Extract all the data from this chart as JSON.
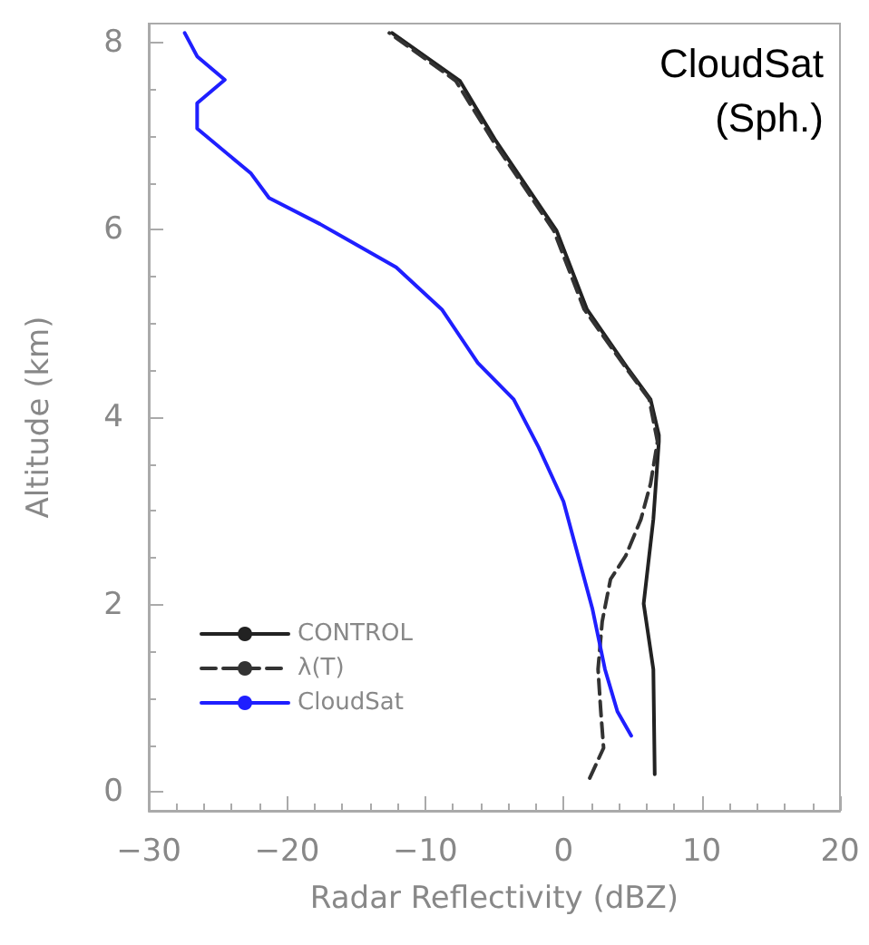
{
  "chart_data": {
    "type": "line",
    "xlabel": "Radar Reflectivity (dBZ)",
    "ylabel": "Altitude (km)",
    "xlim": [
      -30,
      20
    ],
    "xticks": [
      -30,
      -20,
      -10,
      0,
      10,
      20
    ],
    "ylim": [
      -0.2,
      8.2
    ],
    "yticks": [
      0,
      2,
      4,
      6,
      8
    ],
    "grid": false,
    "legend": "bottom left",
    "marker": "none",
    "annotations": [
      "CloudSat\n(Sph.)"
    ],
    "series": [
      {
        "name": "CONTROL",
        "color": "#222222",
        "line_style": "solid",
        "x": [
          6.6,
          6.5,
          5.8,
          6.5,
          6.9,
          6.9,
          6.3,
          4.7,
          1.7,
          -0.5,
          -4.9,
          -7.5,
          -12.4
        ],
        "values": [
          0.19,
          1.31,
          2.01,
          2.91,
          3.74,
          3.81,
          4.19,
          4.51,
          5.15,
          5.99,
          6.95,
          7.59,
          8.1
        ]
      },
      {
        "name": "λ(T)",
        "color": "#333333",
        "line_style": "dashed",
        "x": [
          1.9,
          2.9,
          2.7,
          2.5,
          2.8,
          3.4,
          4.5,
          5.6,
          6.3,
          6.8,
          6.2,
          4.6,
          1.5,
          -0.7,
          -5.1,
          -7.8,
          -12.6
        ],
        "values": [
          0.15,
          0.47,
          0.86,
          1.31,
          1.82,
          2.27,
          2.52,
          2.91,
          3.29,
          3.74,
          4.19,
          4.51,
          5.15,
          5.99,
          6.95,
          7.59,
          8.1
        ]
      },
      {
        "name": "CloudSat",
        "color": "#1f1fff",
        "line_style": "solid",
        "x": [
          4.9,
          3.9,
          3.0,
          2.1,
          0.0,
          -1.8,
          -3.6,
          -6.2,
          -8.8,
          -12.1,
          -17.6,
          -21.3,
          -22.6,
          -26.5,
          -26.5,
          -24.5,
          -26.5,
          -27.4
        ],
        "values": [
          0.6,
          0.86,
          1.31,
          1.95,
          3.1,
          3.68,
          4.19,
          4.58,
          5.15,
          5.6,
          6.06,
          6.34,
          6.6,
          7.08,
          7.35,
          7.6,
          7.85,
          8.1
        ]
      }
    ]
  }
}
